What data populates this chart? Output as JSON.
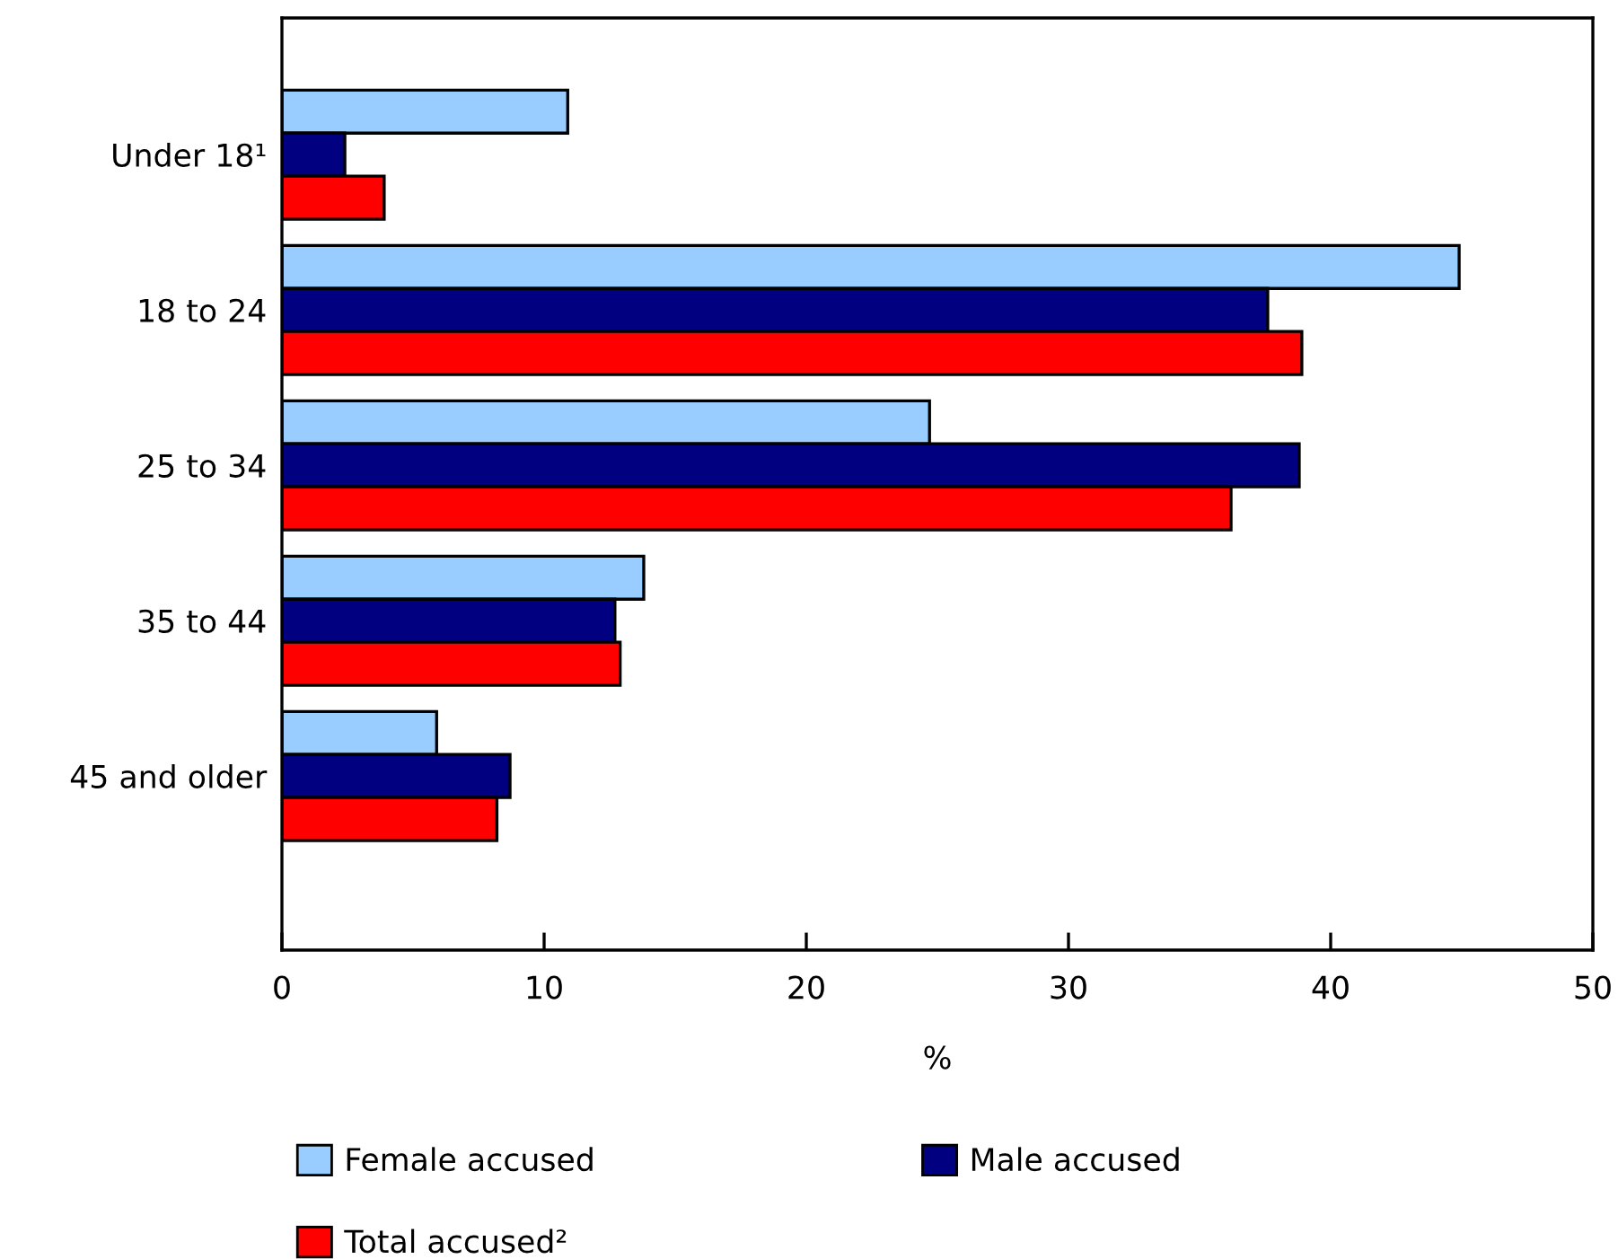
{
  "chart_data": {
    "type": "bar",
    "orientation": "horizontal",
    "xlabel": "%",
    "categories": [
      "Under 18¹",
      "18 to 24",
      "25 to 34",
      "35 to 44",
      "45 and older"
    ],
    "series": [
      {
        "name": "Female accused",
        "color": "#99ccff",
        "values": [
          10.9,
          44.9,
          24.7,
          13.8,
          5.9
        ]
      },
      {
        "name": "Male accused",
        "color": "#000080",
        "values": [
          2.4,
          37.6,
          38.8,
          12.7,
          8.7
        ]
      },
      {
        "name": "Total accused²",
        "color": "#ff0000",
        "values": [
          3.9,
          38.9,
          36.2,
          12.9,
          8.2
        ]
      }
    ],
    "xlim": [
      0,
      50
    ],
    "xticks": [
      0,
      10,
      20,
      30,
      40,
      50
    ],
    "grid": false,
    "legend": "bottom"
  }
}
